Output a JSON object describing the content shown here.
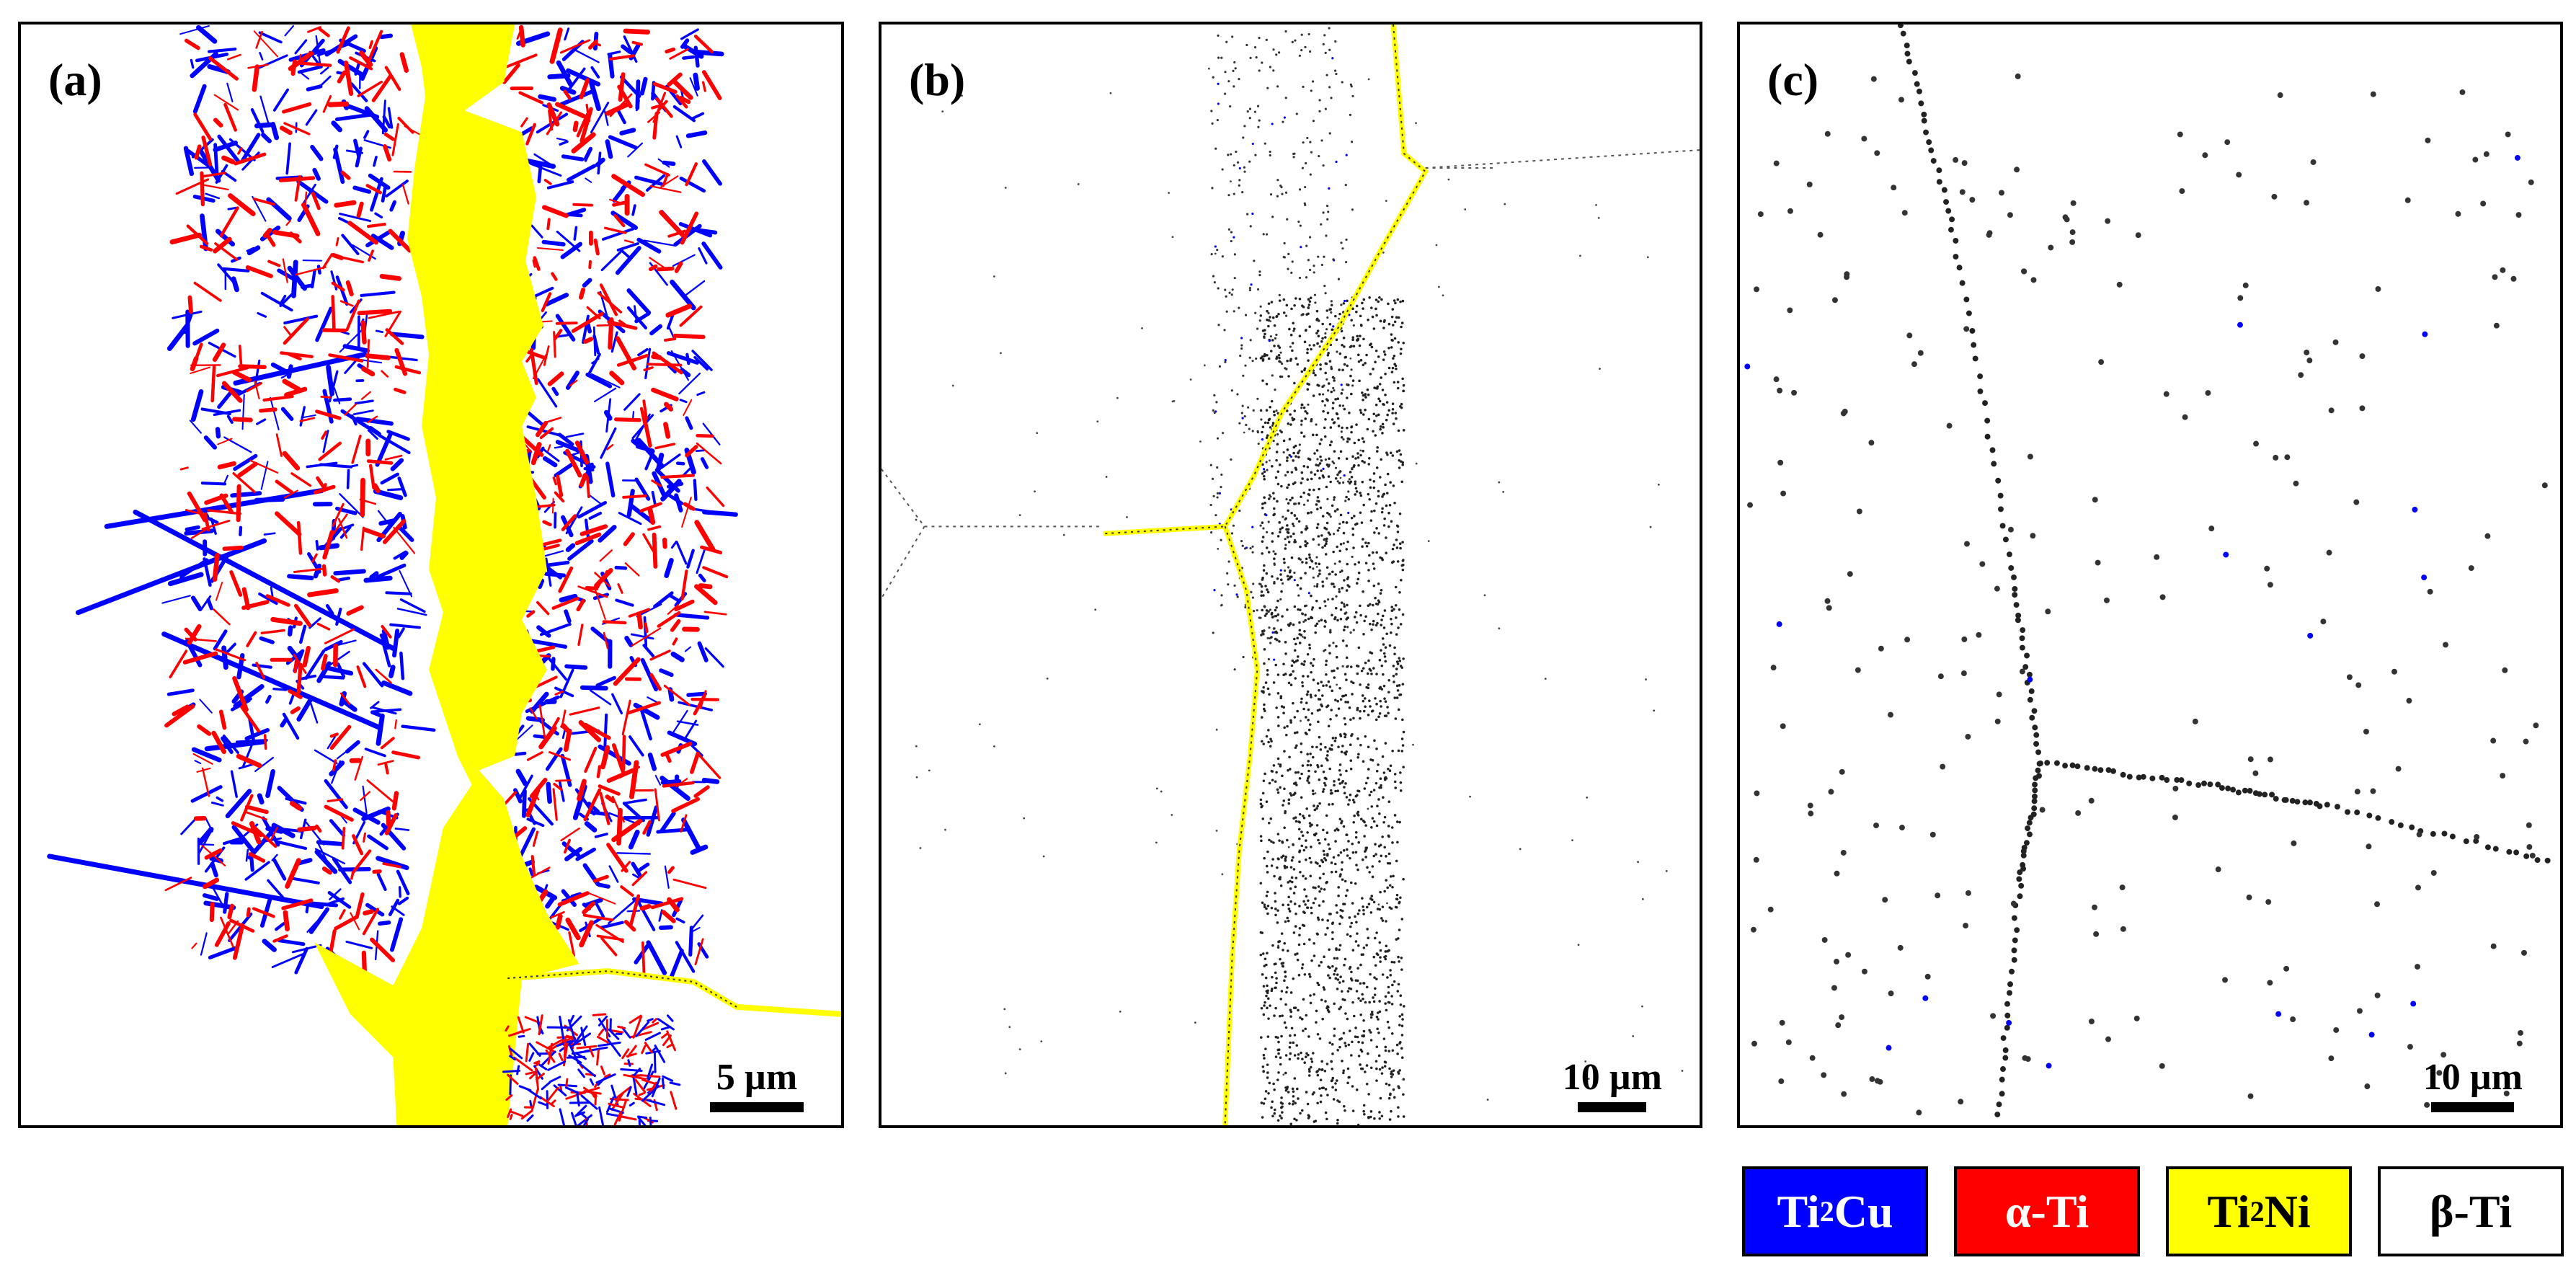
{
  "panels": [
    {
      "label": "(a)",
      "scale": "5 µm"
    },
    {
      "label": "(b)",
      "scale": "10 µm"
    },
    {
      "label": "(c)",
      "scale": "10 µm"
    }
  ],
  "legend": [
    {
      "pre": "Ti",
      "sub": "2",
      "post": "Cu",
      "color": "#0000ff",
      "text_color": "#ffffff"
    },
    {
      "pre": "α-Ti",
      "sub": "",
      "post": "",
      "color": "#ff0000",
      "text_color": "#ffffff"
    },
    {
      "pre": "Ti",
      "sub": "2",
      "post": "Ni",
      "color": "#ffff00",
      "text_color": "#000000"
    },
    {
      "pre": "β-Ti",
      "sub": "",
      "post": "",
      "color": "#ffffff",
      "text_color": "#000000"
    }
  ],
  "colors": {
    "ti2cu": "#0000ff",
    "alpha_ti": "#ff0000",
    "ti2ni": "#ffff00",
    "beta_ti": "#ffffff"
  }
}
